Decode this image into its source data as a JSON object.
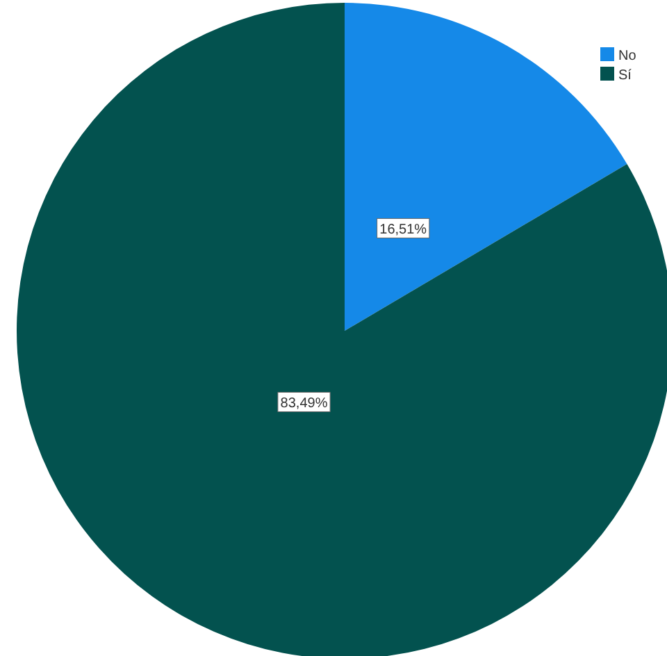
{
  "chart_data": {
    "type": "pie",
    "categories": [
      "No",
      "Sí"
    ],
    "values": [
      16.51,
      83.49
    ],
    "colors": [
      "#1589e8",
      "#03524f"
    ],
    "value_labels": [
      "16,51%",
      "83,49%"
    ],
    "legend": "top right"
  }
}
